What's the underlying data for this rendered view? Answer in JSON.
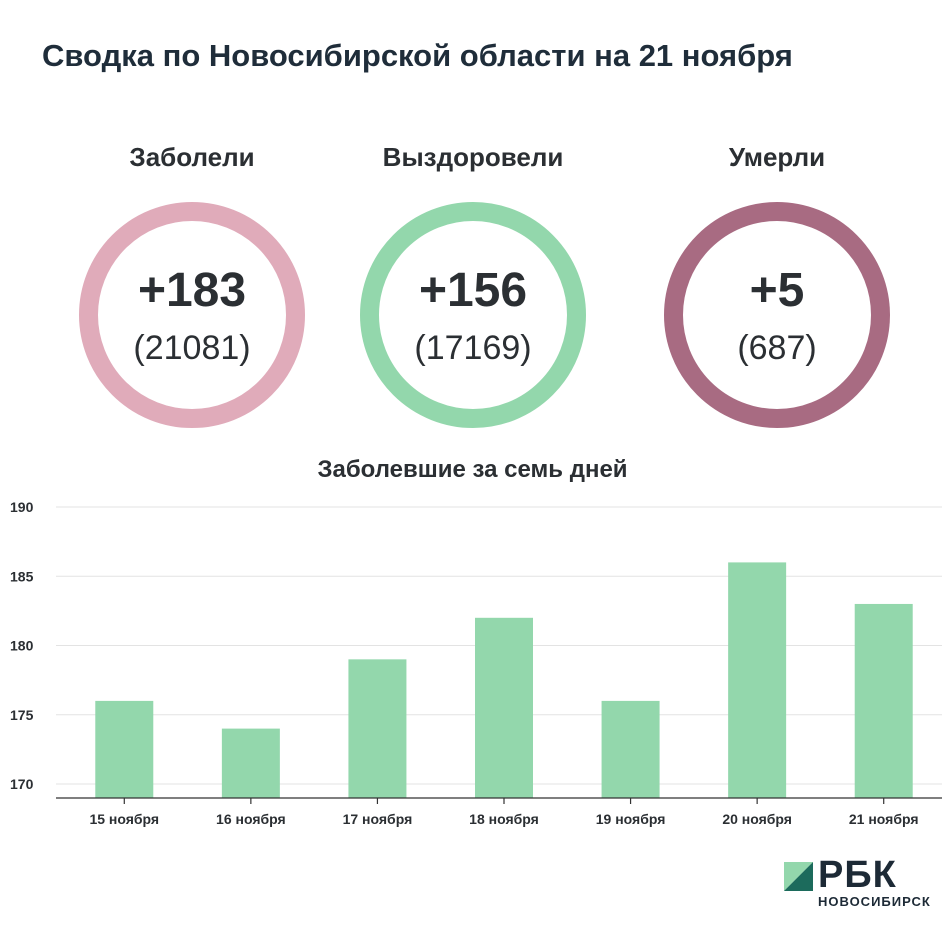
{
  "title": "Сводка по Новосибирской области на 21 ноября",
  "stats": [
    {
      "label": "Заболели",
      "delta": "+183",
      "total": "(21081)",
      "color": "#e0abba"
    },
    {
      "label": "Выздоровели",
      "delta": "+156",
      "total": "(17169)",
      "color": "#93d7ac"
    },
    {
      "label": "Умерли",
      "delta": "+5",
      "total": "(687)",
      "color": "#a86b82"
    }
  ],
  "chart_data": {
    "type": "bar",
    "title": "Заболевшие за семь дней",
    "categories": [
      "15 ноября",
      "16 ноября",
      "17 ноября",
      "18 ноября",
      "19 ноября",
      "20 ноября",
      "21 ноября"
    ],
    "values": [
      176,
      174,
      179,
      182,
      176,
      186,
      183
    ],
    "ylim": [
      170,
      190
    ],
    "yticks": [
      190,
      185,
      180,
      175,
      170
    ],
    "grid": true,
    "bar_color": "#93d7ac"
  },
  "logo": {
    "main": "РБК",
    "sub": "НОВОСИБИРСК",
    "colors": [
      "#93d7ac",
      "#1c6b5c"
    ]
  }
}
